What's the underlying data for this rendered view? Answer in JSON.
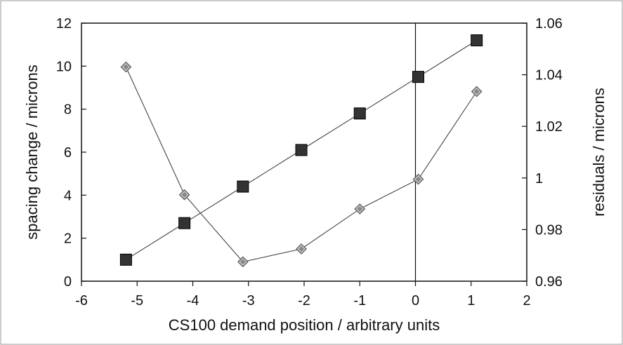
{
  "chart_data": {
    "type": "scatter",
    "xlabel": "CS100 demand position / arbitrary units",
    "ylabel": "spacing change / microns",
    "y2label": "residuals / microns",
    "xlim": [
      -6,
      2
    ],
    "ylim": [
      0,
      12
    ],
    "y2lim": [
      0.96,
      1.06
    ],
    "xticks": [
      "-6",
      "-5",
      "-4",
      "-3",
      "-2",
      "-1",
      "0",
      "1",
      "2"
    ],
    "yticks": [
      "0",
      "2",
      "4",
      "6",
      "8",
      "10",
      "12"
    ],
    "y2ticks": [
      "0.96",
      "0.98",
      "1",
      "1.02",
      "1.04",
      "1.06"
    ],
    "vertical_line_x": 0,
    "grid": false,
    "series": [
      {
        "axis": "left",
        "marker": "square",
        "color": "#333333",
        "x": [
          -5.2,
          -4.15,
          -3.1,
          -2.05,
          -1.0,
          0.05,
          1.1
        ],
        "y": [
          1.0,
          2.7,
          4.4,
          6.1,
          7.8,
          9.5,
          11.2
        ]
      },
      {
        "axis": "right",
        "marker": "diamond",
        "color": "#888888",
        "x": [
          -5.2,
          -4.15,
          -3.1,
          -2.05,
          -1.0,
          0.05,
          1.1
        ],
        "y": [
          1.043,
          0.9935,
          0.9675,
          0.9725,
          0.988,
          0.9995,
          1.0335
        ]
      }
    ]
  }
}
